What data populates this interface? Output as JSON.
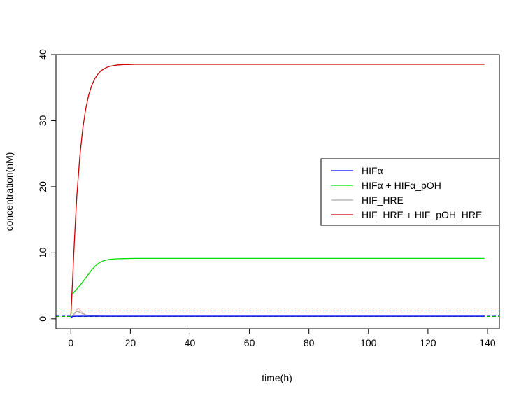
{
  "chart_data": {
    "type": "line",
    "title": "",
    "xlabel": "time(h)",
    "ylabel": "concentration(nM)",
    "xlim": [
      -5,
      144
    ],
    "ylim": [
      -1.5,
      40
    ],
    "x_ticks": [
      0,
      20,
      40,
      60,
      80,
      100,
      120,
      140
    ],
    "y_ticks": [
      0,
      10,
      20,
      30,
      40
    ],
    "grid": false,
    "legend_position": "right",
    "series": [
      {
        "name": "HIFα",
        "color": "#0000ff",
        "style": "solid",
        "x": [
          0,
          0.5,
          1,
          2,
          3,
          5,
          8,
          12,
          20,
          40,
          80,
          139
        ],
        "y": [
          0.1,
          0.35,
          0.38,
          0.4,
          0.4,
          0.4,
          0.4,
          0.4,
          0.4,
          0.4,
          0.4,
          0.4
        ]
      },
      {
        "name": "HIFα + HIFα_pOH",
        "color": "#00dd00",
        "style": "solid",
        "x": [
          0,
          0.3,
          1,
          2,
          3,
          4,
          5,
          6,
          7,
          8,
          9,
          10,
          11,
          12,
          13,
          14,
          16,
          18,
          20,
          22,
          30,
          40,
          60,
          80,
          100,
          120,
          139
        ],
        "y": [
          0.1,
          3.6,
          4.0,
          4.5,
          5.0,
          5.6,
          6.2,
          6.8,
          7.4,
          7.9,
          8.3,
          8.6,
          8.8,
          8.9,
          9.0,
          9.05,
          9.1,
          9.12,
          9.14,
          9.15,
          9.15,
          9.15,
          9.15,
          9.15,
          9.15,
          9.15,
          9.15
        ]
      },
      {
        "name": "HIF_HRE",
        "color": "#aaaaaa",
        "style": "solid",
        "x": [
          0,
          1,
          2,
          3,
          4,
          5,
          6,
          8,
          10,
          15,
          20,
          40,
          80,
          139
        ],
        "y": [
          0.1,
          0.8,
          1.15,
          1.0,
          0.75,
          0.6,
          0.5,
          0.45,
          0.42,
          0.4,
          0.4,
          0.4,
          0.4,
          0.4
        ]
      },
      {
        "name": "HIF_HRE + HIF_pOH_HRE",
        "color": "#cc0000",
        "style": "solid",
        "x": [
          0,
          0.5,
          1,
          1.5,
          2,
          3,
          4,
          5,
          6,
          7,
          8,
          9,
          10,
          11,
          12,
          13,
          14,
          15,
          16,
          18,
          20,
          22,
          30,
          40,
          60,
          80,
          100,
          120,
          139
        ],
        "y": [
          0.5,
          5,
          10,
          14.5,
          18.5,
          24.5,
          28.8,
          31.8,
          33.9,
          35.3,
          36.3,
          37.0,
          37.5,
          37.8,
          38.05,
          38.2,
          38.3,
          38.38,
          38.43,
          38.48,
          38.5,
          38.52,
          38.52,
          38.52,
          38.52,
          38.52,
          38.52,
          38.52,
          38.52
        ]
      }
    ],
    "reference_lines": [
      {
        "y": 1.2,
        "color": "#cc0000",
        "style": "dashed"
      },
      {
        "y": 0.4,
        "color": "#0000ff",
        "style": "dashed"
      },
      {
        "y": 0.35,
        "color": "#00aa00",
        "style": "dashed"
      }
    ],
    "transient_bump": {
      "color": "#ffaaaa",
      "x": [
        1,
        2,
        2.5,
        3,
        4,
        5
      ],
      "y": [
        0.5,
        1.4,
        1.6,
        1.4,
        0.9,
        0.6
      ]
    }
  }
}
